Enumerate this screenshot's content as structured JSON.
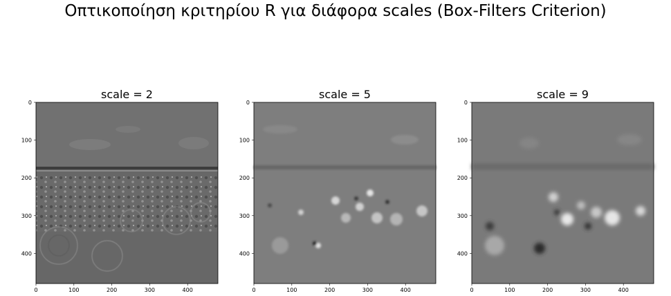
{
  "figure": {
    "title": "Οπτικοποίηση κριτηρίου R για διάφορα scales (Box-Filters Criterion)"
  },
  "panels": [
    {
      "title": "scale = 2",
      "x_ticks": [
        "0",
        "100",
        "200",
        "300",
        "400"
      ],
      "y_ticks": [
        "0",
        "100",
        "200",
        "300",
        "400"
      ]
    },
    {
      "title": "scale = 5",
      "x_ticks": [
        "0",
        "100",
        "200",
        "300",
        "400"
      ],
      "y_ticks": [
        "0",
        "100",
        "200",
        "300",
        "400"
      ]
    },
    {
      "title": "scale = 9",
      "x_ticks": [
        "0",
        "100",
        "200",
        "300",
        "400"
      ],
      "y_ticks": [
        "0",
        "100",
        "200",
        "300",
        "400"
      ]
    }
  ],
  "axis": {
    "xlim": [
      0,
      480
    ],
    "ylim": [
      0,
      480
    ]
  },
  "colors": {
    "background": "#ffffff",
    "axis": "#000000"
  }
}
